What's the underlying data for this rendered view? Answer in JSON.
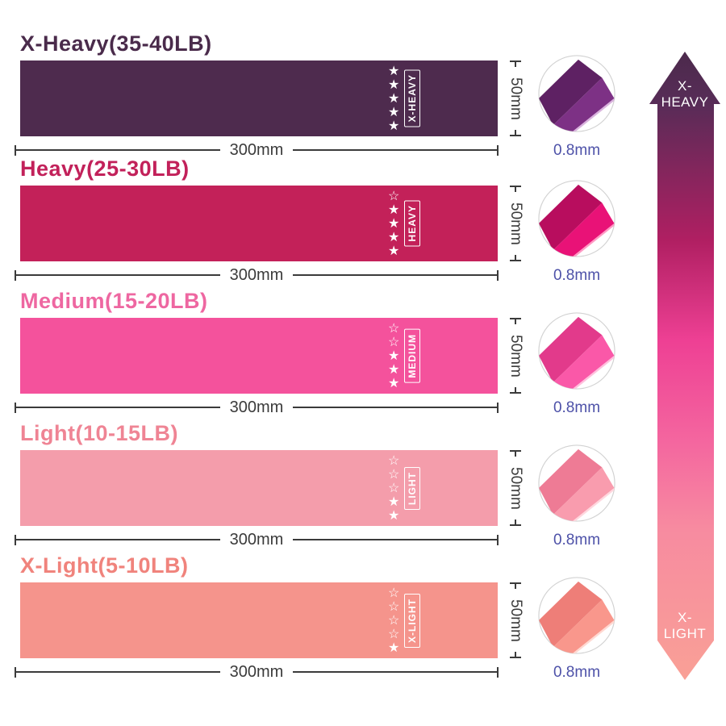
{
  "dim_color": "#3b3b3b",
  "thickness_color": "#4d51a8",
  "rows": [
    {
      "title": "X-Heavy(35-40LB)",
      "title_color": "#4a2b4b",
      "band_color": "#4e2b4e",
      "tag": "X-HEAVY",
      "stars_filled": 5,
      "stars_empty": 0,
      "stars_column": "★\n★\n★\n★\n★",
      "width_label": "300mm",
      "height_label": "50mm",
      "thickness_label": "0.8mm",
      "fold_dark": "#5e2163",
      "fold_main": "#7d3185",
      "fold_edge": "#d9b3dd"
    },
    {
      "title": "Heavy(25-30LB)",
      "title_color": "#c2215a",
      "band_color": "#c32159",
      "tag": "HEAVY",
      "stars_filled": 4,
      "stars_empty": 1,
      "stars_column": "☆\n★\n★\n★\n★",
      "width_label": "300mm",
      "height_label": "50mm",
      "thickness_label": "0.8mm",
      "fold_dark": "#b80d5e",
      "fold_main": "#e91277",
      "fold_edge": "#ff9ac4"
    },
    {
      "title": "Medium(15-20LB)",
      "title_color": "#ee67a1",
      "band_color": "#f4529c",
      "tag": "MEDIUM",
      "stars_filled": 3,
      "stars_empty": 2,
      "stars_column": "☆\n☆\n★\n★\n★",
      "width_label": "300mm",
      "height_label": "50mm",
      "thickness_label": "0.8mm",
      "fold_dark": "#e23a8b",
      "fold_main": "#fa58a8",
      "fold_edge": "#ffc0dd"
    },
    {
      "title": "Light(10-15LB)",
      "title_color": "#ef8494",
      "band_color": "#f49dab",
      "tag": "LIGHT",
      "stars_filled": 2,
      "stars_empty": 3,
      "stars_column": "☆\n☆\n☆\n★\n★",
      "width_label": "300mm",
      "height_label": "50mm",
      "thickness_label": "0.8mm",
      "fold_dark": "#ee7b95",
      "fold_main": "#f99cae",
      "fold_edge": "#ffd7de"
    },
    {
      "title": "X-Light(5-10LB)",
      "title_color": "#f0837c",
      "band_color": "#f5948c",
      "tag": "X-LIGHT",
      "stars_filled": 1,
      "stars_empty": 4,
      "stars_column": "☆\n☆\n☆\n☆\n★",
      "width_label": "300mm",
      "height_label": "50mm",
      "thickness_label": "0.8mm",
      "fold_dark": "#ee7e78",
      "fold_main": "#f9978c",
      "fold_edge": "#ffd9d2"
    }
  ],
  "scale_arrow": {
    "top_label": "X-\nHEAVY",
    "bottom_label": "X-\nLIGHT",
    "gradient": [
      {
        "offset": "0%",
        "color": "#4c2a4c"
      },
      {
        "offset": "8%",
        "color": "#572c57"
      },
      {
        "offset": "30%",
        "color": "#b01f62"
      },
      {
        "offset": "46%",
        "color": "#ee4094"
      },
      {
        "offset": "62%",
        "color": "#f4669f"
      },
      {
        "offset": "76%",
        "color": "#f78ba0"
      },
      {
        "offset": "100%",
        "color": "#f9a096"
      }
    ]
  }
}
